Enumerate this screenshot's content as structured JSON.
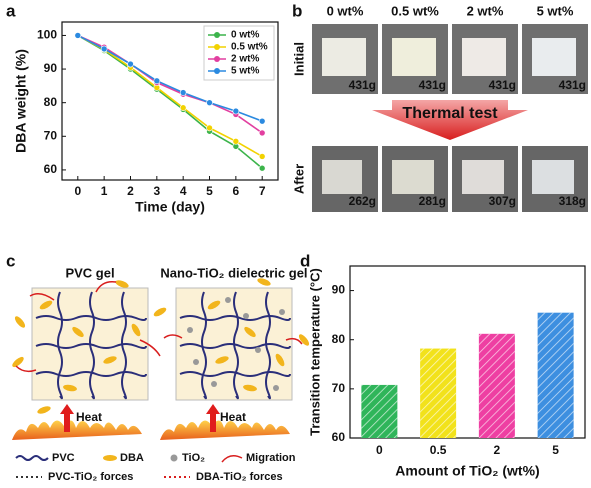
{
  "chart_data": [
    {
      "type": "line",
      "xlabel": "Time (day)",
      "ylabel": "DBA weight (%)",
      "x": [
        0,
        1,
        2,
        3,
        4,
        5,
        6,
        7
      ],
      "xlim": [
        -0.6,
        7.6
      ],
      "xticks": [
        0,
        1,
        2,
        3,
        4,
        5,
        6,
        7
      ],
      "ylim": [
        57,
        104
      ],
      "yticks": [
        60,
        70,
        80,
        90,
        100
      ],
      "legend": "upper right",
      "series": [
        {
          "name": "0 wt%",
          "color": "#3cb44b",
          "values": [
            100,
            95.5,
            90,
            84,
            78,
            71.5,
            67,
            60.5
          ]
        },
        {
          "name": "0.5 wt%",
          "color": "#f2d200",
          "values": [
            100,
            95.8,
            90.5,
            84.5,
            78.5,
            72.5,
            68.5,
            64
          ]
        },
        {
          "name": "2 wt%",
          "color": "#e23fa0",
          "values": [
            100,
            96.5,
            91.5,
            86,
            82.5,
            80,
            76.5,
            71
          ]
        },
        {
          "name": "5 wt%",
          "color": "#2b8ae0",
          "values": [
            100,
            96,
            91.5,
            86.5,
            83,
            80,
            77.5,
            74.5
          ]
        }
      ]
    },
    {
      "type": "bar",
      "xlabel": "Amount of TiO₂ (wt%)",
      "ylabel": "Transition temperature (°C)",
      "categories": [
        "0",
        "0.5",
        "2",
        "5"
      ],
      "values": [
        70.8,
        78.2,
        81.2,
        85.5
      ],
      "colors": [
        "#2fb55a",
        "#f2e21b",
        "#ee3fa2",
        "#3d8fe0"
      ],
      "ylim": [
        60,
        95
      ],
      "yticks": [
        60,
        70,
        80,
        90
      ],
      "hatch": true
    }
  ],
  "panel_labels": [
    "a",
    "b",
    "c",
    "d"
  ],
  "photos": {
    "columns": [
      {
        "label": "0 wt%",
        "color": "#3cb44b"
      },
      {
        "label": "0.5 wt%",
        "color": "#f2d200"
      },
      {
        "label": "2 wt%",
        "color": "#e23fa0"
      },
      {
        "label": "5 wt%",
        "color": "#2b8ae0"
      }
    ],
    "rows": [
      {
        "label": "Initial",
        "color": "#222222",
        "weights": [
          "431g",
          "431g",
          "431g",
          "431g"
        ]
      },
      {
        "label": "After",
        "color": "#c00000",
        "weights": [
          "262g",
          "281g",
          "307g",
          "318g"
        ]
      }
    ],
    "process": "Thermal test"
  },
  "diagram": {
    "panels": [
      {
        "title": "PVC gel",
        "color": "#222222",
        "heat": "Heat"
      },
      {
        "title": "Nano-TiO₂ dielectric gel",
        "color": "#c00000",
        "heat": "Heat"
      }
    ],
    "legend": [
      "PVC",
      "DBA",
      "TiO₂",
      "Migration",
      "PVC-TiO₂ forces",
      "DBA-TiO₂ forces"
    ]
  }
}
